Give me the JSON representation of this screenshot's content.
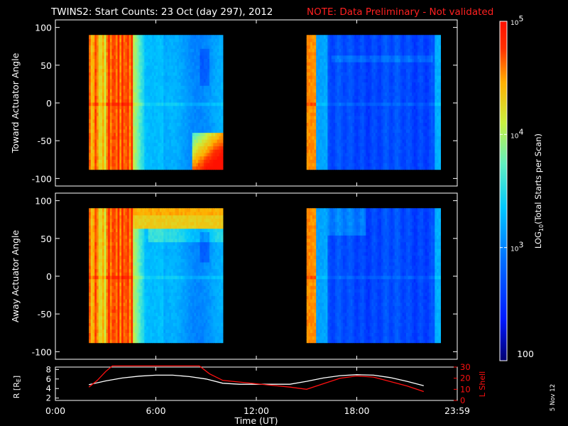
{
  "header": {
    "title": "TWINS2: Start Counts: 23 Oct (day 297), 2012",
    "note": "NOTE: Data Preliminary - Not validated",
    "note_color": "#ff2020"
  },
  "side_stamp": "5 Nov 12",
  "chart_data": [
    {
      "type": "heatmap",
      "id": "toward",
      "ylabel": "Toward Actuator Angle",
      "ylim": [
        -110,
        110
      ],
      "yticks": [
        100,
        50,
        0,
        -50,
        -100
      ],
      "data_ylim": [
        -88,
        90
      ],
      "x_unit": "hours UT",
      "segments": [
        [
          2.0,
          10.0
        ],
        [
          15.0,
          23.0
        ]
      ],
      "color_scale": "log10 counts 100 to 100000"
    },
    {
      "type": "heatmap",
      "id": "away",
      "ylabel": "Away Actuator Angle",
      "ylim": [
        -110,
        110
      ],
      "yticks": [
        100,
        50,
        0,
        -50,
        -100
      ],
      "data_ylim": [
        -88,
        90
      ],
      "x_unit": "hours UT",
      "segments": [
        [
          2.0,
          10.0
        ],
        [
          15.0,
          23.0
        ]
      ],
      "color_scale": "log10 counts 100 to 100000"
    },
    {
      "type": "line",
      "id": "orbit",
      "ylabel_left": "R [R",
      "ylabel_left_sub": "E",
      "ylabel_left_end": "]",
      "ylabel_right": "L Shell",
      "y_left_ticks": [
        8,
        6,
        4,
        2
      ],
      "y_left_lim": [
        1.5,
        8.5
      ],
      "y_right_ticks": [
        30,
        20,
        10,
        0
      ],
      "y_right_lim": [
        0,
        30
      ],
      "series": [
        {
          "name": "R",
          "axis": "left",
          "color": "#ffffff",
          "x": [
            2.0,
            3.0,
            4.0,
            5.0,
            6.0,
            7.0,
            8.0,
            9.0,
            10.0,
            11.0,
            12.0,
            13.0,
            14.0,
            15.0,
            16.0,
            17.0,
            18.0,
            19.0,
            20.0,
            21.0,
            22.0
          ],
          "y": [
            4.8,
            5.6,
            6.2,
            6.6,
            6.8,
            6.8,
            6.5,
            6.0,
            5.1,
            4.9,
            4.9,
            4.9,
            4.9,
            5.5,
            6.2,
            6.7,
            6.9,
            6.8,
            6.3,
            5.5,
            4.6
          ]
        },
        {
          "name": "L Shell",
          "axis": "right",
          "color": "#ff1010",
          "x": [
            2.0,
            2.5,
            3.0,
            3.4,
            8.6,
            9.2,
            10.0,
            12.0,
            14.0,
            15.0,
            16.0,
            17.0,
            18.0,
            19.0,
            20.0,
            21.0,
            22.0
          ],
          "y": [
            12,
            18,
            26,
            31,
            31,
            24,
            18,
            15,
            12,
            10,
            15,
            20,
            22,
            21,
            17,
            13,
            8
          ]
        }
      ]
    }
  ],
  "x_axis": {
    "ticks": [
      0,
      6,
      12,
      18,
      24
    ],
    "tick_labels": [
      "0:00",
      "6:00",
      "12:00",
      "18:00",
      "23:59"
    ],
    "label": "Time (UT)",
    "range": [
      0,
      24
    ]
  },
  "colorbar": {
    "label_pre": "LOG",
    "label_sub": "10",
    "label_post": "(Total Starts per Scan)",
    "ticks": [
      {
        "base": "10",
        "exp": "5",
        "pos": 1.0
      },
      {
        "base": "10",
        "exp": "4",
        "pos": 0.6667
      },
      {
        "base": "10",
        "exp": "3",
        "pos": 0.3333
      }
    ],
    "bottom_label": "100"
  }
}
